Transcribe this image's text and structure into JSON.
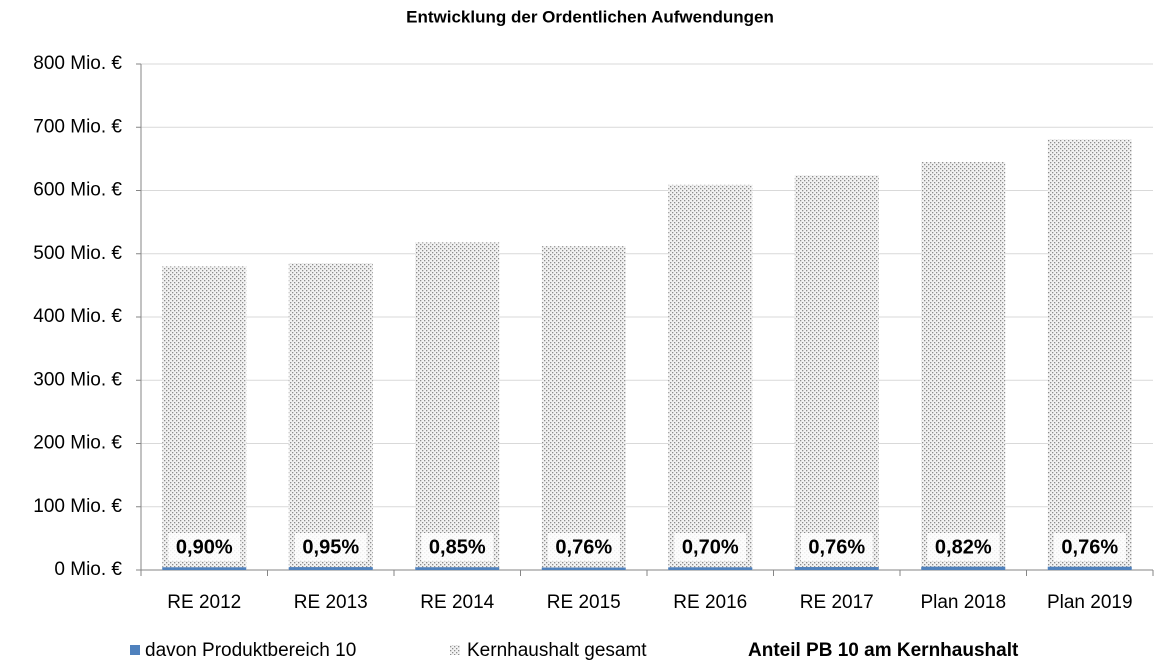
{
  "chart_data": {
    "type": "bar",
    "title": "Entwicklung der Ordentlichen Aufwendungen",
    "categories": [
      "RE 2012",
      "RE 2013",
      "RE 2014",
      "RE 2015",
      "RE 2016",
      "RE 2017",
      "Plan 2018",
      "Plan 2019"
    ],
    "series": [
      {
        "name": "davon Produktbereich 10",
        "color": "#4f81bd",
        "values": [
          4.3,
          4.6,
          4.4,
          3.9,
          4.3,
          4.7,
          5.3,
          5.2
        ]
      },
      {
        "name": "Kernhaushalt gesamt",
        "color": "#bfbfbf",
        "values": [
          480,
          485,
          518,
          512,
          609,
          624,
          645,
          681
        ]
      },
      {
        "name": "Anteil PB 10 am Kernhaushalt",
        "values": [
          0.9,
          0.95,
          0.85,
          0.76,
          0.7,
          0.76,
          0.82,
          0.76
        ],
        "value_labels": [
          "0,90%",
          "0,95%",
          "0,85%",
          "0,76%",
          "0,70%",
          "0,76%",
          "0,82%",
          "0,76%"
        ]
      }
    ],
    "ylim": [
      0,
      800
    ],
    "yticks": [
      {
        "value": 0,
        "label": "0 Mio. €"
      },
      {
        "value": 100,
        "label": "100 Mio. €"
      },
      {
        "value": 200,
        "label": "200 Mio. €"
      },
      {
        "value": 300,
        "label": "300 Mio. €"
      },
      {
        "value": 400,
        "label": "400 Mio. €"
      },
      {
        "value": 500,
        "label": "500 Mio. €"
      },
      {
        "value": 600,
        "label": "600 Mio. €"
      },
      {
        "value": 700,
        "label": "700 Mio. €"
      },
      {
        "value": 800,
        "label": "800 Mio. €"
      }
    ],
    "grid": true
  }
}
